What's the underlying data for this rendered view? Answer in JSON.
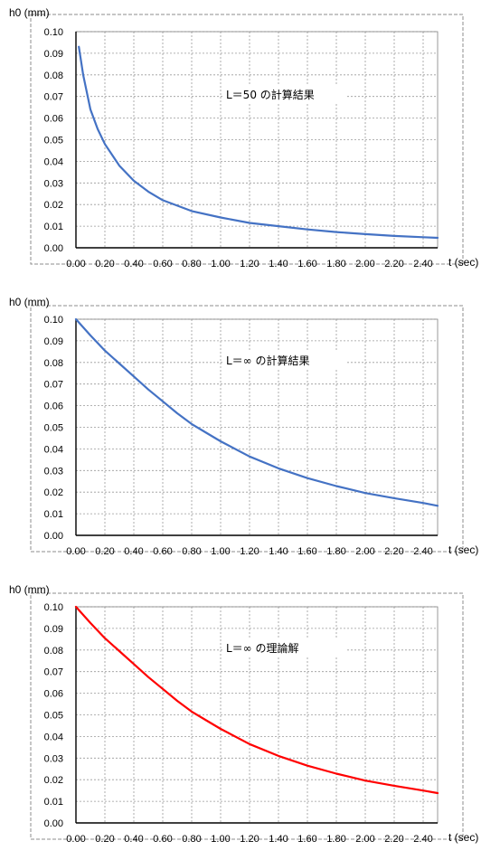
{
  "chart_data": [
    {
      "type": "line",
      "ylabel": "h0 (mm)",
      "xlabel": "t (sec)",
      "annotation": "L＝50 の計算結果",
      "xlim": [
        0,
        2.5
      ],
      "ylim": [
        0,
        0.1
      ],
      "x_ticks": [
        "0.00",
        "0.20",
        "0.40",
        "0.60",
        "0.80",
        "1.00",
        "1.20",
        "1.40",
        "1.60",
        "1.80",
        "2.00",
        "2.20",
        "2.40"
      ],
      "y_ticks": [
        "0.00",
        "0.01",
        "0.02",
        "0.03",
        "0.04",
        "0.05",
        "0.06",
        "0.07",
        "0.08",
        "0.09",
        "0.10"
      ],
      "grid": true,
      "series": [
        {
          "color": "#4472c4",
          "x": [
            0.02,
            0.05,
            0.1,
            0.15,
            0.2,
            0.3,
            0.4,
            0.5,
            0.6,
            0.8,
            1.0,
            1.2,
            1.4,
            1.6,
            1.8,
            2.0,
            2.2,
            2.4,
            2.5
          ],
          "y": [
            0.093,
            0.08,
            0.064,
            0.055,
            0.048,
            0.038,
            0.031,
            0.026,
            0.022,
            0.017,
            0.014,
            0.0115,
            0.01,
            0.0085,
            0.0073,
            0.0063,
            0.0055,
            0.0049,
            0.0046
          ]
        }
      ]
    },
    {
      "type": "line",
      "ylabel": "h0 (mm)",
      "xlabel": "t (sec)",
      "annotation": "L＝∞ の計算結果",
      "xlim": [
        0,
        2.5
      ],
      "ylim": [
        0,
        0.1
      ],
      "x_ticks": [
        "0.00",
        "0.20",
        "0.40",
        "0.60",
        "0.80",
        "1.00",
        "1.20",
        "1.40",
        "1.60",
        "1.80",
        "2.00",
        "2.20",
        "2.40"
      ],
      "y_ticks": [
        "0.00",
        "0.01",
        "0.02",
        "0.03",
        "0.04",
        "0.05",
        "0.06",
        "0.07",
        "0.08",
        "0.09",
        "0.10"
      ],
      "grid": true,
      "series": [
        {
          "color": "#4472c4",
          "x": [
            0.0,
            0.1,
            0.2,
            0.3,
            0.4,
            0.5,
            0.6,
            0.7,
            0.8,
            0.9,
            1.0,
            1.2,
            1.4,
            1.6,
            1.8,
            2.0,
            2.2,
            2.4,
            2.5
          ],
          "y": [
            0.1,
            0.0925,
            0.0855,
            0.0795,
            0.0735,
            0.0675,
            0.062,
            0.0565,
            0.0515,
            0.0475,
            0.0435,
            0.0365,
            0.031,
            0.0265,
            0.0228,
            0.0196,
            0.0172,
            0.015,
            0.0137
          ]
        }
      ]
    },
    {
      "type": "line",
      "ylabel": "h0 (mm)",
      "xlabel": "t (sec)",
      "annotation": "L＝∞ の理論解",
      "xlim": [
        0,
        2.5
      ],
      "ylim": [
        0,
        0.1
      ],
      "x_ticks": [
        "0.00",
        "0.20",
        "0.40",
        "0.60",
        "0.80",
        "1.00",
        "1.20",
        "1.40",
        "1.60",
        "1.80",
        "2.00",
        "2.20",
        "2.40"
      ],
      "y_ticks": [
        "0.00",
        "0.01",
        "0.02",
        "0.03",
        "0.04",
        "0.05",
        "0.06",
        "0.07",
        "0.08",
        "0.09",
        "0.10"
      ],
      "grid": true,
      "series": [
        {
          "color": "#ff0000",
          "x": [
            0.0,
            0.1,
            0.2,
            0.3,
            0.4,
            0.5,
            0.6,
            0.7,
            0.8,
            0.9,
            1.0,
            1.2,
            1.4,
            1.6,
            1.8,
            2.0,
            2.2,
            2.4,
            2.5
          ],
          "y": [
            0.1,
            0.0925,
            0.0855,
            0.0795,
            0.0735,
            0.0675,
            0.062,
            0.0565,
            0.0515,
            0.0475,
            0.0435,
            0.0365,
            0.031,
            0.0265,
            0.0228,
            0.0196,
            0.0172,
            0.015,
            0.0138
          ]
        }
      ]
    }
  ]
}
